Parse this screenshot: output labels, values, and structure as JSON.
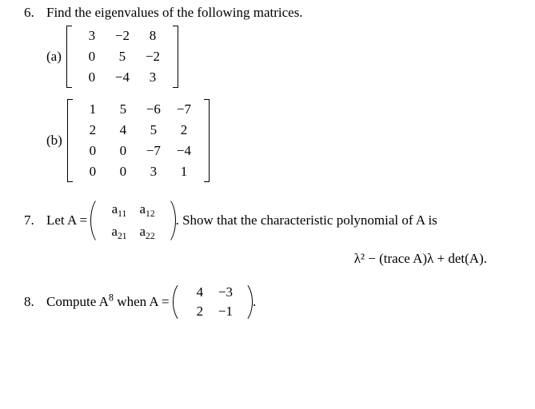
{
  "p6": {
    "num": "6.",
    "stem": "Find the eigenvalues of the following matrices.",
    "a": {
      "label": "(a)",
      "rows": [
        [
          "3",
          "−2",
          "8"
        ],
        [
          "0",
          "5",
          "−2"
        ],
        [
          "0",
          "−4",
          "3"
        ]
      ]
    },
    "b": {
      "label": "(b)",
      "rows": [
        [
          "1",
          "5",
          "−6",
          "−7"
        ],
        [
          "2",
          "4",
          "5",
          "2"
        ],
        [
          "0",
          "0",
          "−7",
          "−4"
        ],
        [
          "0",
          "0",
          "3",
          "1"
        ]
      ]
    }
  },
  "p7": {
    "num": "7.",
    "pre": "Let A =",
    "rows": [
      [
        "a",
        "11",
        "a",
        "12"
      ],
      [
        "a",
        "21",
        "a",
        "22"
      ]
    ],
    "post": ". Show that the characteristic polynomial of A is",
    "formula": "λ² − (trace A)λ + det(A)."
  },
  "p8": {
    "num": "8.",
    "pre1": "Compute A",
    "exp": "8",
    "pre2": " when A =",
    "rows": [
      [
        "4",
        "−3"
      ],
      [
        "2",
        "−1"
      ]
    ],
    "post": "."
  }
}
